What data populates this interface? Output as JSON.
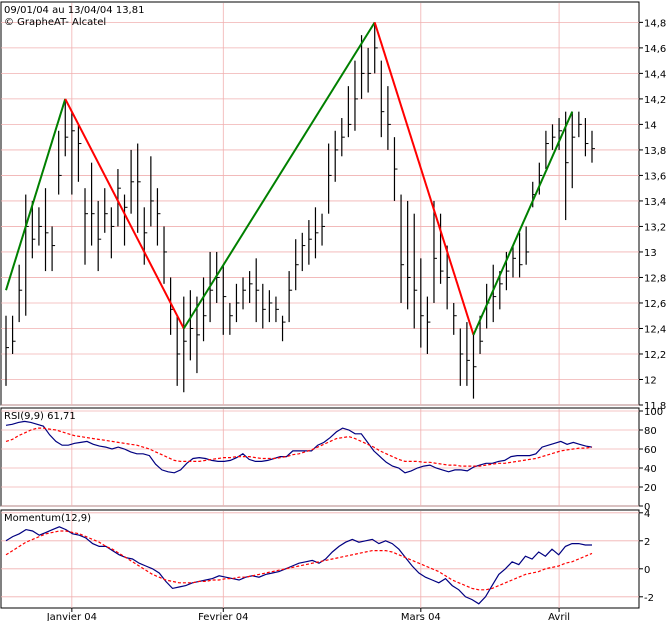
{
  "chart_data": [
    {
      "type": "line",
      "subtype": "bar-ohlc-with-zigzag",
      "header_line1": "09/01/04 au 13/04/04 13,81",
      "header_line2": "© GrapheAT- Alcatel",
      "yticks": [
        "14,8",
        "14,6",
        "14,4",
        "14,2",
        "14",
        "13,8",
        "13,6",
        "13,4",
        "13,2",
        "13",
        "12,8",
        "12,6",
        "12,4",
        "12,2",
        "12",
        "11,8"
      ],
      "ylim": [
        11.8,
        14.85
      ],
      "date_ticks": [
        {
          "label": "Janvier 04",
          "t": 10
        },
        {
          "label": "Fevrier 04",
          "t": 33
        },
        {
          "label": "Mars 04",
          "t": 63
        },
        {
          "label": "Avril",
          "t": 84
        }
      ],
      "bars": [
        [
          0,
          11.95,
          12.5,
          12.25
        ],
        [
          1,
          12.2,
          12.5,
          12.3
        ],
        [
          2,
          12.45,
          12.9,
          12.7
        ],
        [
          3,
          12.5,
          13.45,
          13.2
        ],
        [
          4,
          12.95,
          13.4,
          13.1
        ],
        [
          5,
          13.05,
          13.35,
          13.2
        ],
        [
          6,
          12.85,
          13.5,
          13.15
        ],
        [
          7,
          12.85,
          13.2,
          13.05
        ],
        [
          8,
          13.45,
          13.95,
          13.6
        ],
        [
          9,
          13.75,
          14.2,
          13.9
        ],
        [
          10,
          13.45,
          14.1,
          13.95
        ],
        [
          11,
          13.55,
          14.0,
          13.85
        ],
        [
          12,
          12.9,
          13.5,
          13.3
        ],
        [
          13,
          13.05,
          13.7,
          13.3
        ],
        [
          14,
          12.85,
          13.4,
          13.1
        ],
        [
          15,
          13.15,
          13.5,
          13.3
        ],
        [
          16,
          12.95,
          13.35,
          13.2
        ],
        [
          17,
          13.2,
          13.65,
          13.5
        ],
        [
          18,
          13.05,
          13.45,
          13.35
        ],
        [
          19,
          13.3,
          13.8,
          13.55
        ],
        [
          20,
          13.15,
          13.85,
          13.55
        ],
        [
          21,
          12.9,
          13.35,
          13.15
        ],
        [
          22,
          13.2,
          13.75,
          13.4
        ],
        [
          23,
          13.05,
          13.5,
          13.3
        ],
        [
          24,
          12.75,
          13.2,
          13.0
        ],
        [
          25,
          12.35,
          12.8,
          12.55
        ],
        [
          26,
          11.95,
          12.5,
          12.2
        ],
        [
          27,
          11.9,
          12.65,
          12.3
        ],
        [
          28,
          12.15,
          12.7,
          12.4
        ],
        [
          29,
          12.05,
          12.65,
          12.35
        ],
        [
          30,
          12.3,
          12.8,
          12.5
        ],
        [
          31,
          12.45,
          13.0,
          12.7
        ],
        [
          32,
          12.6,
          13.0,
          12.8
        ],
        [
          33,
          12.35,
          12.9,
          12.65
        ],
        [
          34,
          12.35,
          12.6,
          12.5
        ],
        [
          35,
          12.45,
          12.75,
          12.6
        ],
        [
          36,
          12.55,
          12.8,
          12.7
        ],
        [
          37,
          12.6,
          12.85,
          12.75
        ],
        [
          38,
          12.45,
          12.95,
          12.7
        ],
        [
          39,
          12.4,
          12.75,
          12.55
        ],
        [
          40,
          12.45,
          12.7,
          12.6
        ],
        [
          41,
          12.45,
          12.65,
          12.55
        ],
        [
          42,
          12.3,
          12.5,
          12.45
        ],
        [
          43,
          12.45,
          12.85,
          12.7
        ],
        [
          44,
          12.7,
          13.1,
          12.9
        ],
        [
          45,
          12.85,
          13.15,
          13.05
        ],
        [
          46,
          12.9,
          13.25,
          13.1
        ],
        [
          47,
          12.95,
          13.35,
          13.15
        ],
        [
          48,
          13.05,
          13.3,
          13.2
        ],
        [
          49,
          13.3,
          13.85,
          13.6
        ],
        [
          50,
          13.55,
          13.95,
          13.8
        ],
        [
          51,
          13.75,
          14.05,
          13.9
        ],
        [
          52,
          13.9,
          14.3,
          14.0
        ],
        [
          53,
          13.95,
          14.5,
          14.2
        ],
        [
          54,
          14.2,
          14.7,
          14.4
        ],
        [
          55,
          14.25,
          14.6,
          14.4
        ],
        [
          56,
          14.4,
          14.8,
          14.6
        ],
        [
          57,
          13.9,
          14.5,
          14.1
        ],
        [
          58,
          13.8,
          14.3,
          14.0
        ],
        [
          59,
          13.4,
          13.9,
          13.65
        ],
        [
          60,
          12.6,
          13.45,
          12.9
        ],
        [
          61,
          12.55,
          13.4,
          12.8
        ],
        [
          62,
          12.4,
          13.3,
          12.7
        ],
        [
          63,
          12.25,
          12.95,
          12.5
        ],
        [
          64,
          12.2,
          12.65,
          12.45
        ],
        [
          65,
          12.6,
          13.4,
          12.95
        ],
        [
          66,
          12.75,
          13.3,
          12.85
        ],
        [
          67,
          12.55,
          13.05,
          12.8
        ],
        [
          68,
          12.35,
          12.6,
          12.5
        ],
        [
          69,
          11.95,
          12.4,
          12.2
        ],
        [
          70,
          11.95,
          12.45,
          12.15
        ],
        [
          71,
          11.85,
          12.35,
          12.1
        ],
        [
          72,
          12.2,
          12.5,
          12.3
        ],
        [
          73,
          12.4,
          12.75,
          12.6
        ],
        [
          74,
          12.45,
          12.9,
          12.65
        ],
        [
          75,
          12.55,
          12.85,
          12.75
        ],
        [
          76,
          12.7,
          13.0,
          12.85
        ],
        [
          77,
          12.8,
          13.05,
          12.95
        ],
        [
          78,
          12.8,
          13.15,
          12.9
        ],
        [
          79,
          12.9,
          13.2,
          13.0
        ],
        [
          80,
          13.35,
          13.55,
          13.45
        ],
        [
          81,
          13.45,
          13.7,
          13.6
        ],
        [
          82,
          13.65,
          13.95,
          13.85
        ],
        [
          83,
          13.8,
          14.0,
          13.9
        ],
        [
          84,
          13.8,
          14.05,
          13.95
        ],
        [
          85,
          13.25,
          14.1,
          13.7
        ],
        [
          86,
          13.5,
          14.1,
          13.9
        ],
        [
          87,
          13.9,
          14.1,
          14.0
        ],
        [
          88,
          13.75,
          14.05,
          13.85
        ],
        [
          89,
          13.7,
          13.95,
          13.81
        ]
      ],
      "zigzag": [
        [
          0,
          12.7
        ],
        [
          9,
          14.2
        ],
        [
          27,
          12.4
        ],
        [
          56,
          14.8
        ],
        [
          71,
          12.35
        ],
        [
          86,
          14.1
        ]
      ],
      "zigzag_colors": {
        "up": "#008000",
        "down": "#ff0000",
        "bars": "#000000"
      }
    },
    {
      "type": "line",
      "header": "RSI(9,9)  61,71",
      "yticks": [
        "100",
        "80",
        "60",
        "40",
        "20",
        "0"
      ],
      "ylim": [
        0,
        100
      ],
      "series": [
        {
          "values": [
            85,
            86,
            88,
            89,
            88,
            86,
            84,
            75,
            68,
            64,
            64,
            66,
            67,
            68,
            65,
            63,
            62,
            60,
            62,
            60,
            57,
            55,
            55,
            53,
            44,
            38,
            36,
            35,
            38,
            45,
            50,
            51,
            50,
            48,
            47,
            47,
            48,
            51,
            55,
            49,
            47,
            47,
            48,
            50,
            52,
            52,
            58,
            58,
            58,
            58,
            64,
            67,
            72,
            78,
            82,
            80,
            76,
            76,
            67,
            58,
            52,
            46,
            42,
            40,
            35,
            37,
            40,
            42,
            43,
            40,
            38,
            36,
            38,
            38,
            37,
            41,
            43,
            45,
            45,
            47,
            48,
            52,
            53,
            53,
            53,
            55,
            62,
            64,
            66,
            68,
            65,
            67,
            65,
            63,
            62
          ],
          "color": "#000080"
        },
        {
          "values": [
            68,
            70,
            74,
            77,
            80,
            82,
            82,
            81,
            80,
            78,
            76,
            74,
            73,
            72,
            71,
            70,
            69,
            68,
            67,
            66,
            65,
            64,
            62,
            60,
            57,
            54,
            51,
            48,
            47,
            47,
            47,
            47,
            48,
            49,
            50,
            51,
            51,
            52,
            52,
            52,
            51,
            50,
            50,
            50,
            51,
            52,
            54,
            55,
            57,
            59,
            62,
            65,
            68,
            71,
            72,
            73,
            71,
            68,
            65,
            62,
            58,
            55,
            52,
            49,
            47,
            47,
            47,
            46,
            46,
            45,
            44,
            43,
            43,
            42,
            42,
            42,
            42,
            43,
            44,
            45,
            45,
            46,
            47,
            48,
            49,
            50,
            52,
            54,
            56,
            58,
            59,
            60,
            61,
            61,
            62
          ],
          "color": "#ff0000"
        }
      ]
    },
    {
      "type": "line",
      "header": "Momentum(12,9)",
      "yticks": [
        "4",
        "2",
        "0",
        "-2"
      ],
      "ylim": [
        -2.8,
        4.2
      ],
      "series": [
        {
          "values": [
            2.0,
            2.3,
            2.5,
            2.8,
            2.7,
            2.4,
            2.6,
            2.8,
            3.0,
            2.8,
            2.5,
            2.4,
            2.2,
            1.8,
            1.6,
            1.6,
            1.3,
            1.0,
            0.8,
            0.7,
            0.4,
            0.2,
            0.0,
            -0.3,
            -0.9,
            -1.4,
            -1.3,
            -1.2,
            -1.0,
            -0.9,
            -0.8,
            -0.7,
            -0.5,
            -0.6,
            -0.7,
            -0.8,
            -0.6,
            -0.5,
            -0.6,
            -0.4,
            -0.3,
            -0.2,
            0.0,
            0.2,
            0.4,
            0.5,
            0.6,
            0.4,
            0.7,
            1.2,
            1.6,
            1.9,
            2.1,
            1.9,
            2.0,
            2.1,
            1.8,
            2.0,
            1.8,
            1.4,
            0.8,
            0.2,
            -0.3,
            -0.6,
            -0.8,
            -1.0,
            -0.7,
            -1.2,
            -1.5,
            -2.0,
            -2.2,
            -2.5,
            -2.0,
            -1.2,
            -0.4,
            0.0,
            0.5,
            0.3,
            0.9,
            0.7,
            1.2,
            0.9,
            1.4,
            1.0,
            1.6,
            1.8,
            1.8,
            1.7,
            1.7
          ],
          "color": "#000080"
        },
        {
          "values": [
            1.0,
            1.3,
            1.6,
            1.9,
            2.1,
            2.3,
            2.5,
            2.6,
            2.7,
            2.7,
            2.6,
            2.5,
            2.3,
            2.1,
            1.9,
            1.6,
            1.4,
            1.1,
            0.8,
            0.5,
            0.2,
            -0.1,
            -0.4,
            -0.6,
            -0.8,
            -0.9,
            -1.0,
            -1.0,
            -1.0,
            -0.9,
            -0.9,
            -0.8,
            -0.8,
            -0.7,
            -0.7,
            -0.6,
            -0.6,
            -0.5,
            -0.4,
            -0.3,
            -0.2,
            -0.1,
            0.0,
            0.1,
            0.2,
            0.3,
            0.4,
            0.5,
            0.6,
            0.7,
            0.8,
            0.9,
            1.0,
            1.1,
            1.2,
            1.3,
            1.3,
            1.3,
            1.2,
            1.0,
            0.8,
            0.6,
            0.4,
            0.2,
            0.0,
            -0.2,
            -0.5,
            -0.8,
            -1.0,
            -1.2,
            -1.4,
            -1.5,
            -1.5,
            -1.4,
            -1.2,
            -1.0,
            -0.8,
            -0.6,
            -0.4,
            -0.3,
            -0.2,
            0.0,
            0.1,
            0.2,
            0.4,
            0.5,
            0.7,
            0.9,
            1.1
          ],
          "color": "#ff0000"
        }
      ]
    }
  ]
}
